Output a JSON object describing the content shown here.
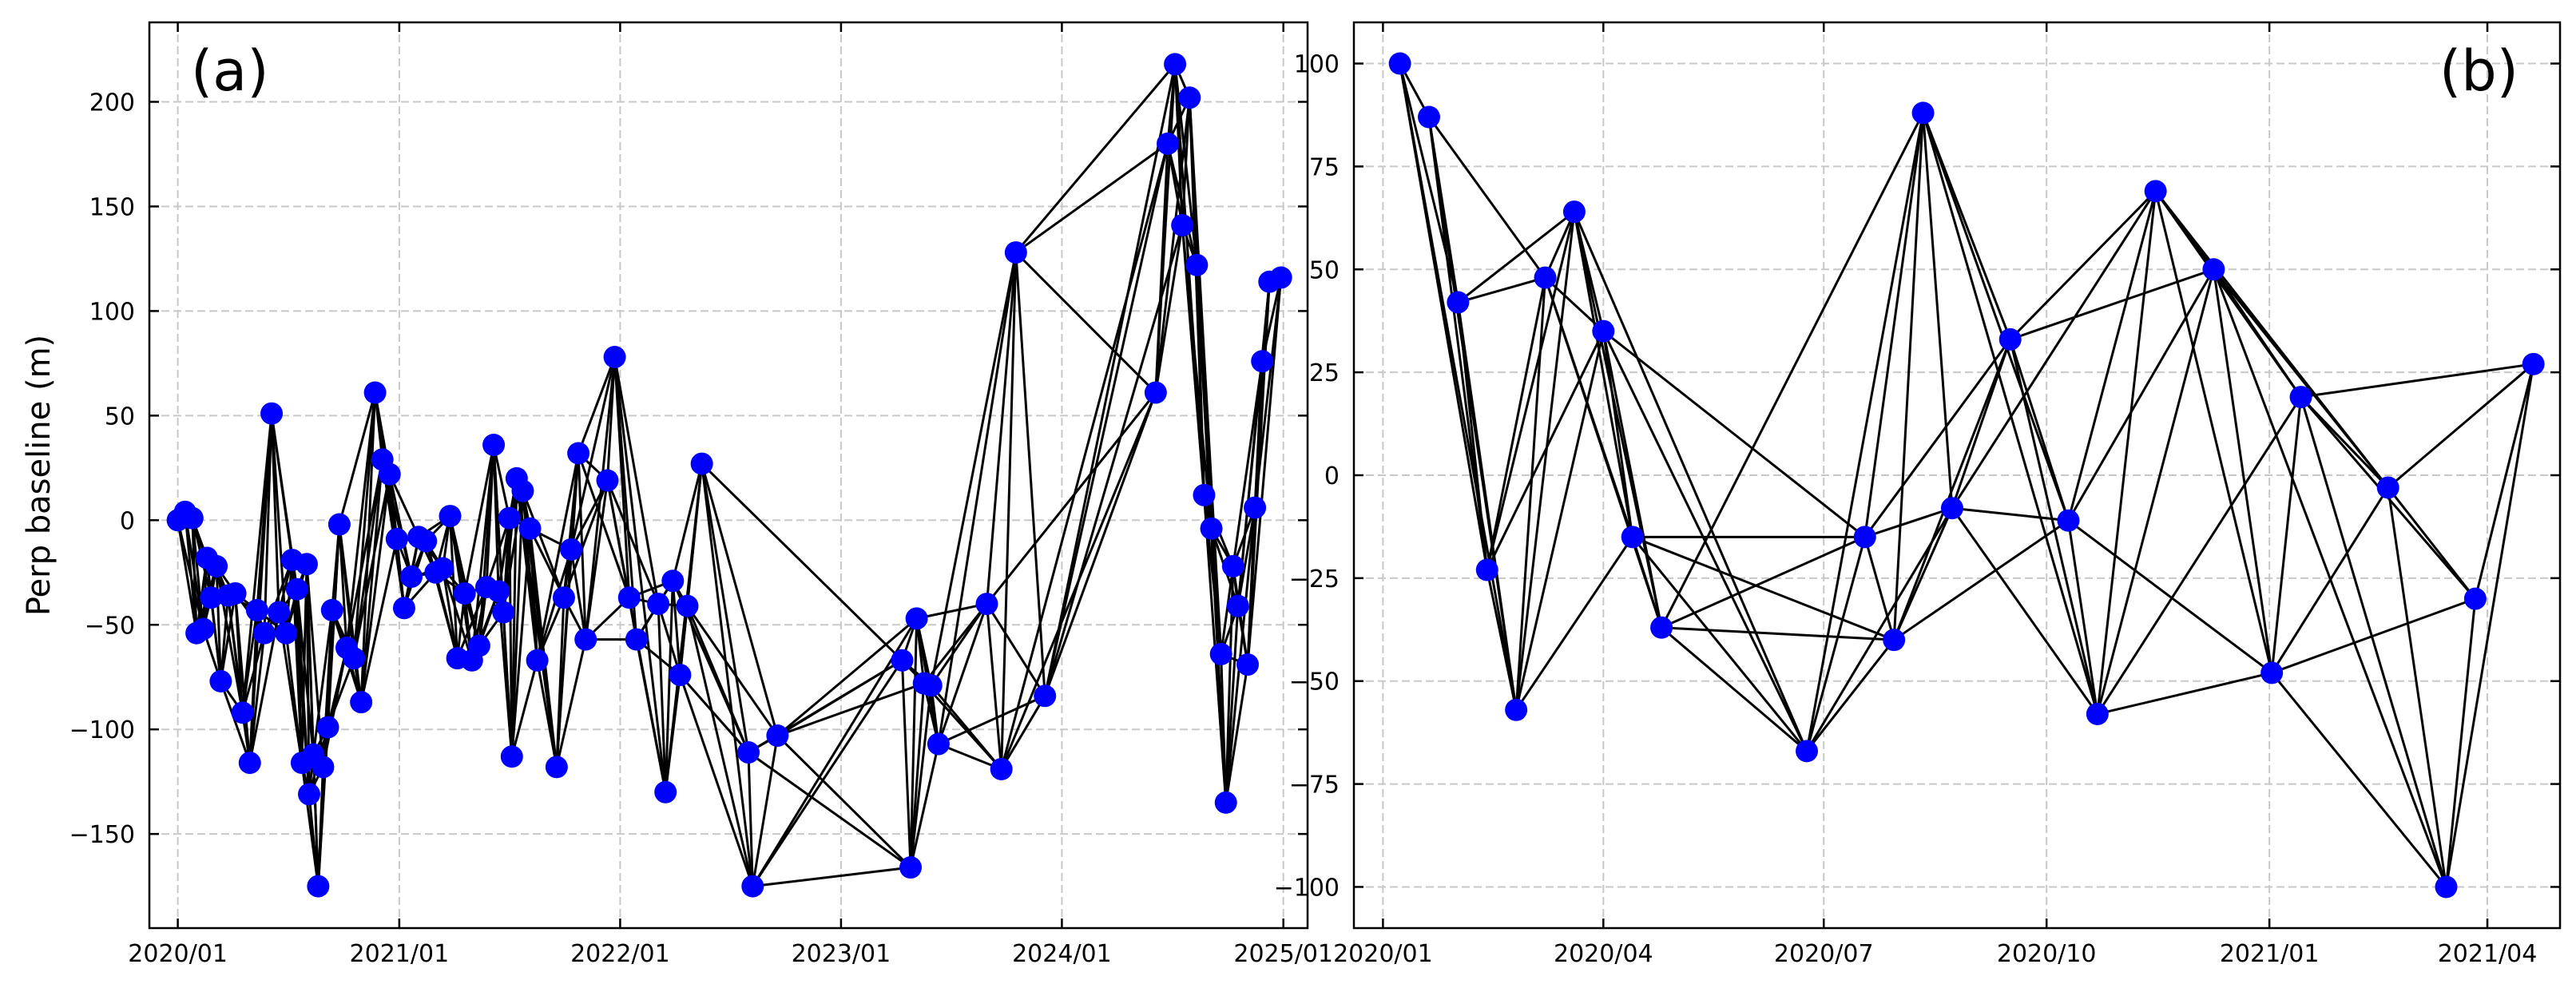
{
  "chart_data": [
    {
      "type": "scatter",
      "panel_label": "(a)",
      "title": "",
      "xlabel": "",
      "ylabel": "Perp baseline (m)",
      "xlim": [
        "2019-11-15",
        "2025-02-10"
      ],
      "ylim": [
        -195,
        238
      ],
      "x_tick_labels": [
        "2020/01",
        "2021/01",
        "2022/01",
        "2023/01",
        "2024/01",
        "2025/01"
      ],
      "x_tick_dates": [
        "2020-01-01",
        "2021-01-01",
        "2022-01-01",
        "2023-01-01",
        "2024-01-01",
        "2025-01-01"
      ],
      "y_ticks": [
        -150,
        -100,
        -50,
        0,
        50,
        100,
        150,
        200
      ],
      "y_tick_labels": [
        "−150",
        "−100",
        "−50",
        "0",
        "50",
        "100",
        "150",
        "200"
      ],
      "grid": true,
      "marker_color": "#0000ff",
      "line_color": "#000000",
      "points": [
        {
          "x": "2020-01-01",
          "y": 0
        },
        {
          "x": "2020-01-13",
          "y": 4
        },
        {
          "x": "2020-01-25",
          "y": 1
        },
        {
          "x": "2020-02-01",
          "y": -54
        },
        {
          "x": "2020-02-12",
          "y": -52
        },
        {
          "x": "2020-02-18",
          "y": -18
        },
        {
          "x": "2020-02-25",
          "y": -37
        },
        {
          "x": "2020-03-05",
          "y": -22
        },
        {
          "x": "2020-03-12",
          "y": -77
        },
        {
          "x": "2020-03-24",
          "y": -36
        },
        {
          "x": "2020-04-05",
          "y": -35
        },
        {
          "x": "2020-04-17",
          "y": -92
        },
        {
          "x": "2020-04-29",
          "y": -116
        },
        {
          "x": "2020-05-11",
          "y": -43
        },
        {
          "x": "2020-05-23",
          "y": -54
        },
        {
          "x": "2020-06-04",
          "y": 51
        },
        {
          "x": "2020-06-16",
          "y": -44
        },
        {
          "x": "2020-06-28",
          "y": -54
        },
        {
          "x": "2020-07-08",
          "y": -19
        },
        {
          "x": "2020-07-16",
          "y": -33
        },
        {
          "x": "2020-07-24",
          "y": -116
        },
        {
          "x": "2020-08-01",
          "y": -21
        },
        {
          "x": "2020-08-05",
          "y": -131
        },
        {
          "x": "2020-08-12",
          "y": -112
        },
        {
          "x": "2020-08-20",
          "y": -175
        },
        {
          "x": "2020-08-28",
          "y": -118
        },
        {
          "x": "2020-09-05",
          "y": -99
        },
        {
          "x": "2020-09-12",
          "y": -43
        },
        {
          "x": "2020-09-24",
          "y": -2
        },
        {
          "x": "2020-10-06",
          "y": -61
        },
        {
          "x": "2020-10-18",
          "y": -66
        },
        {
          "x": "2020-10-30",
          "y": -87
        },
        {
          "x": "2020-11-22",
          "y": 61
        },
        {
          "x": "2020-12-04",
          "y": 29
        },
        {
          "x": "2020-12-16",
          "y": 22
        },
        {
          "x": "2020-12-28",
          "y": -9
        },
        {
          "x": "2021-01-09",
          "y": -42
        },
        {
          "x": "2021-01-21",
          "y": -27
        },
        {
          "x": "2021-02-02",
          "y": -8
        },
        {
          "x": "2021-02-14",
          "y": -10
        },
        {
          "x": "2021-03-02",
          "y": -25
        },
        {
          "x": "2021-03-14",
          "y": -23
        },
        {
          "x": "2021-03-26",
          "y": 2
        },
        {
          "x": "2021-04-07",
          "y": -66
        },
        {
          "x": "2021-04-19",
          "y": -35
        },
        {
          "x": "2021-05-01",
          "y": -67
        },
        {
          "x": "2021-05-13",
          "y": -60
        },
        {
          "x": "2021-05-25",
          "y": -32
        },
        {
          "x": "2021-06-06",
          "y": 36
        },
        {
          "x": "2021-06-14",
          "y": -34
        },
        {
          "x": "2021-06-22",
          "y": -44
        },
        {
          "x": "2021-07-02",
          "y": 1
        },
        {
          "x": "2021-07-06",
          "y": -113
        },
        {
          "x": "2021-07-14",
          "y": 20
        },
        {
          "x": "2021-07-24",
          "y": 14
        },
        {
          "x": "2021-08-05",
          "y": -4
        },
        {
          "x": "2021-08-17",
          "y": -67
        },
        {
          "x": "2021-09-18",
          "y": -118
        },
        {
          "x": "2021-09-30",
          "y": -37
        },
        {
          "x": "2021-10-12",
          "y": -14
        },
        {
          "x": "2021-10-24",
          "y": 32
        },
        {
          "x": "2021-11-05",
          "y": -57
        },
        {
          "x": "2021-12-11",
          "y": 19
        },
        {
          "x": "2021-12-23",
          "y": 78
        },
        {
          "x": "2022-01-16",
          "y": -37
        },
        {
          "x": "2022-01-28",
          "y": -57
        },
        {
          "x": "2022-03-05",
          "y": -40
        },
        {
          "x": "2022-03-17",
          "y": -130
        },
        {
          "x": "2022-03-29",
          "y": -29
        },
        {
          "x": "2022-04-10",
          "y": -74
        },
        {
          "x": "2022-04-22",
          "y": -41
        },
        {
          "x": "2022-05-16",
          "y": 27
        },
        {
          "x": "2022-08-01",
          "y": -111
        },
        {
          "x": "2022-08-08",
          "y": -175
        },
        {
          "x": "2022-09-18",
          "y": -103
        },
        {
          "x": "2023-04-12",
          "y": -67
        },
        {
          "x": "2023-04-26",
          "y": -166
        },
        {
          "x": "2023-05-06",
          "y": -47
        },
        {
          "x": "2023-05-18",
          "y": -78
        },
        {
          "x": "2023-05-30",
          "y": -79
        },
        {
          "x": "2023-06-11",
          "y": -107
        },
        {
          "x": "2023-08-30",
          "y": -40
        },
        {
          "x": "2023-09-23",
          "y": -119
        },
        {
          "x": "2023-10-17",
          "y": 128
        },
        {
          "x": "2023-12-04",
          "y": -84
        },
        {
          "x": "2024-06-04",
          "y": 61
        },
        {
          "x": "2024-06-24",
          "y": 180
        },
        {
          "x": "2024-07-06",
          "y": 218
        },
        {
          "x": "2024-07-18",
          "y": 141
        },
        {
          "x": "2024-07-30",
          "y": 202
        },
        {
          "x": "2024-08-11",
          "y": 122
        },
        {
          "x": "2024-08-23",
          "y": 12
        },
        {
          "x": "2024-09-04",
          "y": -4
        },
        {
          "x": "2024-09-20",
          "y": -64
        },
        {
          "x": "2024-09-28",
          "y": -135
        },
        {
          "x": "2024-10-10",
          "y": -22
        },
        {
          "x": "2024-10-18",
          "y": -41
        },
        {
          "x": "2024-11-03",
          "y": -69
        },
        {
          "x": "2024-11-15",
          "y": 6
        },
        {
          "x": "2024-11-27",
          "y": 76
        },
        {
          "x": "2024-12-09",
          "y": 114
        },
        {
          "x": "2024-12-28",
          "y": 116
        }
      ],
      "pair_rule": "consecutive acquisitions up to 4 ahead are connected"
    },
    {
      "type": "scatter",
      "panel_label": "(b)",
      "title": "",
      "xlabel": "",
      "ylabel": "",
      "xlim": [
        "2019-12-20",
        "2021-05-01"
      ],
      "ylim": [
        -110,
        110
      ],
      "x_tick_labels": [
        "2020/01",
        "2020/04",
        "2020/07",
        "2020/10",
        "2021/01",
        "2021/04"
      ],
      "x_tick_dates": [
        "2020-01-01",
        "2020-04-01",
        "2020-07-01",
        "2020-10-01",
        "2021-01-01",
        "2021-04-01"
      ],
      "y_ticks": [
        -100,
        -75,
        -50,
        -25,
        0,
        25,
        50,
        75,
        100
      ],
      "y_tick_labels": [
        "−100",
        "−75",
        "−50",
        "−25",
        "0",
        "25",
        "50",
        "75",
        "100"
      ],
      "grid": true,
      "marker_color": "#0000ff",
      "line_color": "#000000",
      "points": [
        {
          "x": "2020-01-08",
          "y": 100
        },
        {
          "x": "2020-01-20",
          "y": 87
        },
        {
          "x": "2020-02-01",
          "y": 42
        },
        {
          "x": "2020-02-13",
          "y": -23
        },
        {
          "x": "2020-02-25",
          "y": -57
        },
        {
          "x": "2020-03-08",
          "y": 48
        },
        {
          "x": "2020-03-20",
          "y": 64
        },
        {
          "x": "2020-04-01",
          "y": 35
        },
        {
          "x": "2020-04-13",
          "y": -15
        },
        {
          "x": "2020-04-25",
          "y": -37
        },
        {
          "x": "2020-06-24",
          "y": -67
        },
        {
          "x": "2020-07-18",
          "y": -15
        },
        {
          "x": "2020-07-30",
          "y": -40
        },
        {
          "x": "2020-08-11",
          "y": 88
        },
        {
          "x": "2020-08-23",
          "y": -8
        },
        {
          "x": "2020-09-16",
          "y": 33
        },
        {
          "x": "2020-10-10",
          "y": -11
        },
        {
          "x": "2020-10-22",
          "y": -58
        },
        {
          "x": "2020-11-15",
          "y": 69
        },
        {
          "x": "2020-12-09",
          "y": 50
        },
        {
          "x": "2021-01-02",
          "y": -48
        },
        {
          "x": "2021-01-14",
          "y": 19
        },
        {
          "x": "2021-02-19",
          "y": -3
        },
        {
          "x": "2021-03-15",
          "y": -100
        },
        {
          "x": "2021-03-27",
          "y": -30
        },
        {
          "x": "2021-04-20",
          "y": 27
        }
      ],
      "pair_rule": "consecutive acquisitions up to 4 ahead are connected"
    }
  ]
}
